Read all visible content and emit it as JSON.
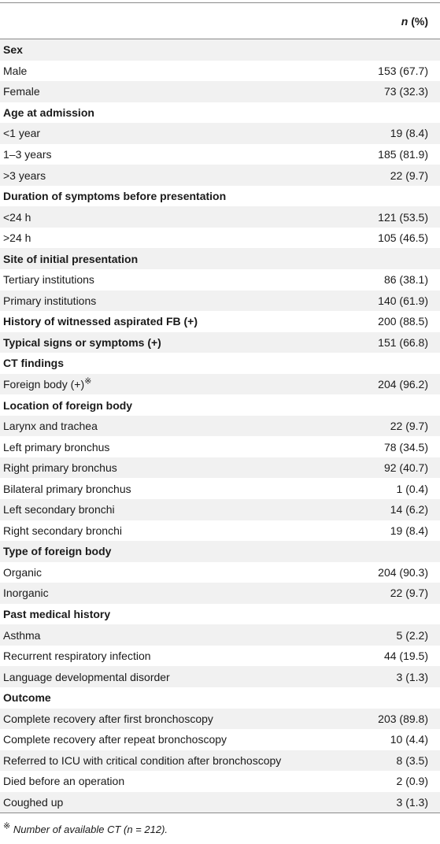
{
  "table": {
    "header": {
      "n_label": "n",
      "pct_label": "(%)"
    },
    "rows": [
      {
        "label": "Sex",
        "value": "",
        "section": true
      },
      {
        "label": "Male",
        "value": "153 (67.7)"
      },
      {
        "label": "Female",
        "value": "73 (32.3)"
      },
      {
        "label": "Age at admission",
        "value": "",
        "section": true
      },
      {
        "label": "<1 year",
        "value": "19 (8.4)"
      },
      {
        "label": "1–3 years",
        "value": "185 (81.9)"
      },
      {
        "label": ">3 years",
        "value": "22 (9.7)"
      },
      {
        "label": "Duration of symptoms before presentation",
        "value": "",
        "section": true
      },
      {
        "label": "<24 h",
        "value": "121 (53.5)"
      },
      {
        "label": ">24 h",
        "value": "105 (46.5)"
      },
      {
        "label": "Site of initial presentation",
        "value": "",
        "section": true
      },
      {
        "label": "Tertiary institutions",
        "value": "86 (38.1)"
      },
      {
        "label": "Primary institutions",
        "value": "140 (61.9)"
      },
      {
        "label": "History of witnessed aspirated FB (+)",
        "value": "200 (88.5)",
        "section": true
      },
      {
        "label": "Typical signs or symptoms (+)",
        "value": "151 (66.8)",
        "section": true
      },
      {
        "label": "CT findings",
        "value": "",
        "section": true
      },
      {
        "label": "Foreign body (+)",
        "value": "204 (96.2)",
        "sup": "※"
      },
      {
        "label": "Location of foreign body",
        "value": "",
        "section": true
      },
      {
        "label": "Larynx and trachea",
        "value": "22 (9.7)"
      },
      {
        "label": "Left primary bronchus",
        "value": "78 (34.5)"
      },
      {
        "label": "Right primary bronchus",
        "value": "92 (40.7)"
      },
      {
        "label": "Bilateral primary bronchus",
        "value": "1 (0.4)"
      },
      {
        "label": "Left secondary bronchi",
        "value": "14 (6.2)"
      },
      {
        "label": "Right secondary bronchi",
        "value": "19 (8.4)"
      },
      {
        "label": "Type of foreign body",
        "value": "",
        "section": true
      },
      {
        "label": "Organic",
        "value": "204 (90.3)"
      },
      {
        "label": "Inorganic",
        "value": "22 (9.7)"
      },
      {
        "label": "Past medical history",
        "value": "",
        "section": true
      },
      {
        "label": "Asthma",
        "value": "5 (2.2)"
      },
      {
        "label": "Recurrent respiratory infection",
        "value": "44 (19.5)"
      },
      {
        "label": "Language developmental disorder",
        "value": "3 (1.3)"
      },
      {
        "label": "Outcome",
        "value": "",
        "section": true
      },
      {
        "label": "Complete recovery after first bronchoscopy",
        "value": "203 (89.8)"
      },
      {
        "label": "Complete recovery after repeat bronchoscopy",
        "value": "10 (4.4)"
      },
      {
        "label": "Referred to ICU with critical condition after bronchoscopy",
        "value": "8 (3.5)"
      },
      {
        "label": "Died before an operation",
        "value": "2 (0.9)"
      },
      {
        "label": "Coughed up",
        "value": "3 (1.3)"
      }
    ]
  },
  "footnote": {
    "mark": "※",
    "text": "Number of available CT (n = 212)."
  }
}
